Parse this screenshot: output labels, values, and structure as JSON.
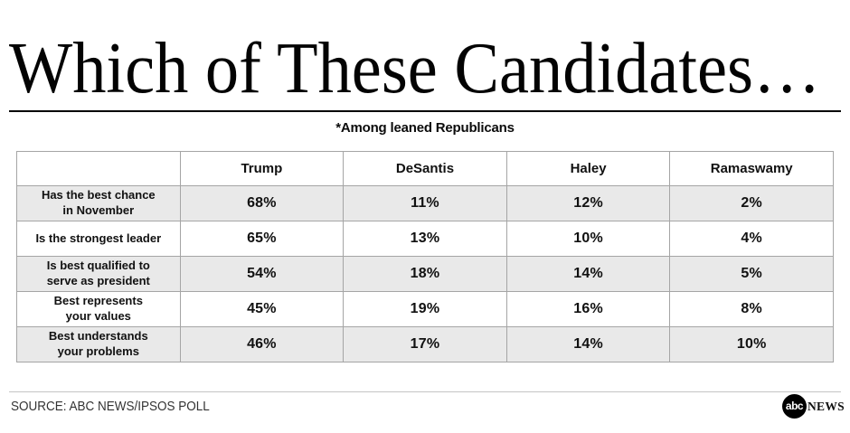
{
  "page": {
    "title": "Which of These Candidates…",
    "subtitle": "*Among leaned Republicans",
    "source": "SOURCE: ABC NEWS/IPSOS POLL",
    "logo": {
      "abc": "abc",
      "news": "NEWS"
    }
  },
  "table": {
    "columns": [
      "Trump",
      "DeSantis",
      "Haley",
      "Ramaswamy"
    ],
    "rows": [
      {
        "label": "Has the best chance\nin November",
        "cells": [
          "68%",
          "11%",
          "12%",
          "2%"
        ]
      },
      {
        "label": "Is the strongest leader",
        "cells": [
          "65%",
          "13%",
          "10%",
          "4%"
        ]
      },
      {
        "label": "Is best qualified to\nserve as president",
        "cells": [
          "54%",
          "18%",
          "14%",
          "5%"
        ]
      },
      {
        "label": "Best represents\nyour values",
        "cells": [
          "45%",
          "19%",
          "16%",
          "8%"
        ]
      },
      {
        "label": "Best understands\nyour problems",
        "cells": [
          "46%",
          "17%",
          "14%",
          "10%"
        ]
      }
    ]
  },
  "chart_data": {
    "type": "table",
    "title": "Which of These Candidates…",
    "subtitle": "*Among leaned Republicans",
    "columns": [
      "Trump",
      "DeSantis",
      "Haley",
      "Ramaswamy"
    ],
    "row_labels": [
      "Has the best chance in November",
      "Is the strongest leader",
      "Is best qualified to serve as president",
      "Best represents your values",
      "Best understands your problems"
    ],
    "series": [
      {
        "name": "Trump",
        "values": [
          68,
          65,
          54,
          45,
          46
        ]
      },
      {
        "name": "DeSantis",
        "values": [
          11,
          13,
          18,
          19,
          17
        ]
      },
      {
        "name": "Haley",
        "values": [
          12,
          10,
          14,
          16,
          14
        ]
      },
      {
        "name": "Ramaswamy",
        "values": [
          2,
          4,
          5,
          8,
          10
        ]
      }
    ],
    "unit": "%",
    "source": "SOURCE: ABC NEWS/IPSOS POLL"
  },
  "colors": {
    "row_shade": "#e9e9e9",
    "table_border": "#a5a5a5",
    "title_rule": "#000000",
    "footer_rule": "#c4c4c4",
    "text": "#111111",
    "logo_bg": "#000000"
  }
}
